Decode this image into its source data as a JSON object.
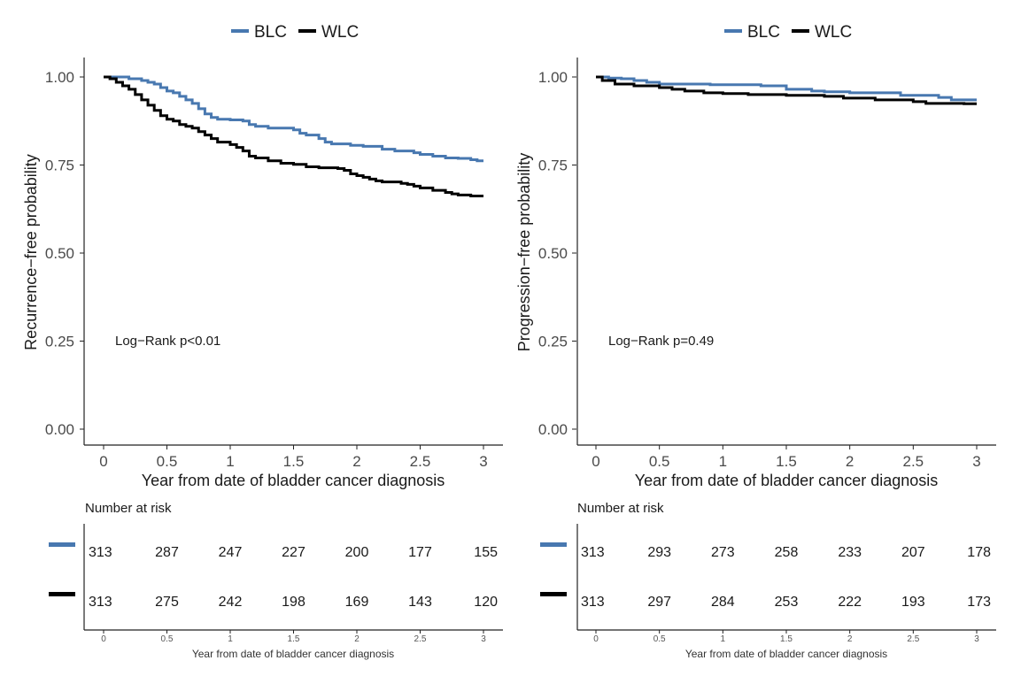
{
  "legend": {
    "entries": [
      {
        "label": "BLC",
        "color": "#4878b0"
      },
      {
        "label": "WLC",
        "color": "#000000"
      }
    ]
  },
  "chart_data": [
    {
      "type": "line",
      "step": true,
      "title": "",
      "xlabel": "Year from date of bladder cancer diagnosis",
      "ylabel": "Recurrence−free probability",
      "xlim": [
        0,
        3
      ],
      "ylim": [
        0,
        1
      ],
      "x_ticks": [
        "0",
        "0.5",
        "1",
        "1.5",
        "2",
        "2.5",
        "3"
      ],
      "y_ticks": [
        "0.00",
        "0.25",
        "0.50",
        "0.75",
        "1.00"
      ],
      "annotation": "Log−Rank p<0.01",
      "series": [
        {
          "name": "BLC",
          "color": "#4878b0",
          "points": [
            [
              0,
              1.0
            ],
            [
              0.1,
              1.0
            ],
            [
              0.2,
              0.995
            ],
            [
              0.3,
              0.99
            ],
            [
              0.35,
              0.985
            ],
            [
              0.4,
              0.98
            ],
            [
              0.45,
              0.97
            ],
            [
              0.5,
              0.96
            ],
            [
              0.55,
              0.955
            ],
            [
              0.6,
              0.945
            ],
            [
              0.65,
              0.935
            ],
            [
              0.7,
              0.925
            ],
            [
              0.75,
              0.91
            ],
            [
              0.8,
              0.895
            ],
            [
              0.85,
              0.885
            ],
            [
              0.9,
              0.88
            ],
            [
              1.0,
              0.878
            ],
            [
              1.1,
              0.875
            ],
            [
              1.15,
              0.865
            ],
            [
              1.2,
              0.86
            ],
            [
              1.3,
              0.855
            ],
            [
              1.5,
              0.85
            ],
            [
              1.55,
              0.84
            ],
            [
              1.6,
              0.835
            ],
            [
              1.7,
              0.825
            ],
            [
              1.75,
              0.815
            ],
            [
              1.8,
              0.81
            ],
            [
              1.95,
              0.806
            ],
            [
              2.05,
              0.803
            ],
            [
              2.2,
              0.795
            ],
            [
              2.3,
              0.79
            ],
            [
              2.45,
              0.785
            ],
            [
              2.5,
              0.78
            ],
            [
              2.6,
              0.775
            ],
            [
              2.7,
              0.77
            ],
            [
              2.8,
              0.769
            ],
            [
              2.9,
              0.765
            ],
            [
              2.95,
              0.762
            ],
            [
              3.0,
              0.762
            ]
          ]
        },
        {
          "name": "WLC",
          "color": "#000000",
          "points": [
            [
              0,
              1.0
            ],
            [
              0.05,
              0.995
            ],
            [
              0.1,
              0.985
            ],
            [
              0.15,
              0.975
            ],
            [
              0.2,
              0.965
            ],
            [
              0.25,
              0.95
            ],
            [
              0.3,
              0.935
            ],
            [
              0.35,
              0.92
            ],
            [
              0.4,
              0.905
            ],
            [
              0.45,
              0.89
            ],
            [
              0.5,
              0.88
            ],
            [
              0.55,
              0.875
            ],
            [
              0.6,
              0.865
            ],
            [
              0.65,
              0.86
            ],
            [
              0.7,
              0.855
            ],
            [
              0.75,
              0.845
            ],
            [
              0.8,
              0.835
            ],
            [
              0.85,
              0.825
            ],
            [
              0.9,
              0.815
            ],
            [
              1.0,
              0.808
            ],
            [
              1.05,
              0.8
            ],
            [
              1.1,
              0.79
            ],
            [
              1.15,
              0.775
            ],
            [
              1.2,
              0.77
            ],
            [
              1.3,
              0.762
            ],
            [
              1.4,
              0.755
            ],
            [
              1.5,
              0.752
            ],
            [
              1.6,
              0.745
            ],
            [
              1.7,
              0.742
            ],
            [
              1.85,
              0.74
            ],
            [
              1.9,
              0.735
            ],
            [
              1.95,
              0.725
            ],
            [
              2.0,
              0.72
            ],
            [
              2.05,
              0.715
            ],
            [
              2.1,
              0.71
            ],
            [
              2.15,
              0.705
            ],
            [
              2.2,
              0.702
            ],
            [
              2.35,
              0.698
            ],
            [
              2.4,
              0.695
            ],
            [
              2.45,
              0.69
            ],
            [
              2.5,
              0.685
            ],
            [
              2.6,
              0.678
            ],
            [
              2.7,
              0.672
            ],
            [
              2.75,
              0.668
            ],
            [
              2.8,
              0.665
            ],
            [
              2.9,
              0.662
            ],
            [
              3.0,
              0.662
            ]
          ]
        }
      ],
      "risk_table": {
        "title": "Number at risk",
        "x_ticks": [
          "0",
          "0.5",
          "1",
          "1.5",
          "2",
          "2.5",
          "3"
        ],
        "xlabel": "Year from date of bladder cancer diagnosis",
        "rows": [
          {
            "name": "BLC",
            "color": "#4878b0",
            "values": [
              "313",
              "287",
              "247",
              "227",
              "200",
              "177",
              "155"
            ]
          },
          {
            "name": "WLC",
            "color": "#000000",
            "values": [
              "313",
              "275",
              "242",
              "198",
              "169",
              "143",
              "120"
            ]
          }
        ]
      }
    },
    {
      "type": "line",
      "step": true,
      "title": "",
      "xlabel": "Year from date of bladder cancer diagnosis",
      "ylabel": "Progression−free probability",
      "xlim": [
        0,
        3
      ],
      "ylim": [
        0,
        1
      ],
      "x_ticks": [
        "0",
        "0.5",
        "1",
        "1.5",
        "2",
        "2.5",
        "3"
      ],
      "y_ticks": [
        "0.00",
        "0.25",
        "0.50",
        "0.75",
        "1.00"
      ],
      "annotation": "Log−Rank p=0.49",
      "series": [
        {
          "name": "BLC",
          "color": "#4878b0",
          "points": [
            [
              0,
              1.0
            ],
            [
              0.1,
              0.997
            ],
            [
              0.2,
              0.995
            ],
            [
              0.3,
              0.99
            ],
            [
              0.4,
              0.985
            ],
            [
              0.5,
              0.98
            ],
            [
              0.9,
              0.978
            ],
            [
              1.3,
              0.975
            ],
            [
              1.5,
              0.965
            ],
            [
              1.7,
              0.96
            ],
            [
              1.8,
              0.958
            ],
            [
              2.0,
              0.955
            ],
            [
              2.4,
              0.948
            ],
            [
              2.7,
              0.942
            ],
            [
              2.8,
              0.935
            ],
            [
              3.0,
              0.935
            ]
          ]
        },
        {
          "name": "WLC",
          "color": "#000000",
          "points": [
            [
              0,
              1.0
            ],
            [
              0.05,
              0.99
            ],
            [
              0.15,
              0.98
            ],
            [
              0.3,
              0.975
            ],
            [
              0.5,
              0.97
            ],
            [
              0.6,
              0.965
            ],
            [
              0.7,
              0.96
            ],
            [
              0.85,
              0.955
            ],
            [
              1.0,
              0.953
            ],
            [
              1.2,
              0.95
            ],
            [
              1.5,
              0.948
            ],
            [
              1.8,
              0.945
            ],
            [
              1.95,
              0.94
            ],
            [
              2.2,
              0.935
            ],
            [
              2.5,
              0.93
            ],
            [
              2.6,
              0.925
            ],
            [
              2.9,
              0.924
            ],
            [
              3.0,
              0.924
            ]
          ]
        }
      ],
      "risk_table": {
        "title": "Number at risk",
        "x_ticks": [
          "0",
          "0.5",
          "1",
          "1.5",
          "2",
          "2.5",
          "3"
        ],
        "xlabel": "Year from date of bladder cancer diagnosis",
        "rows": [
          {
            "name": "BLC",
            "color": "#4878b0",
            "values": [
              "313",
              "293",
              "273",
              "258",
              "233",
              "207",
              "178"
            ]
          },
          {
            "name": "WLC",
            "color": "#000000",
            "values": [
              "313",
              "297",
              "284",
              "253",
              "222",
              "193",
              "173"
            ]
          }
        ]
      }
    }
  ]
}
